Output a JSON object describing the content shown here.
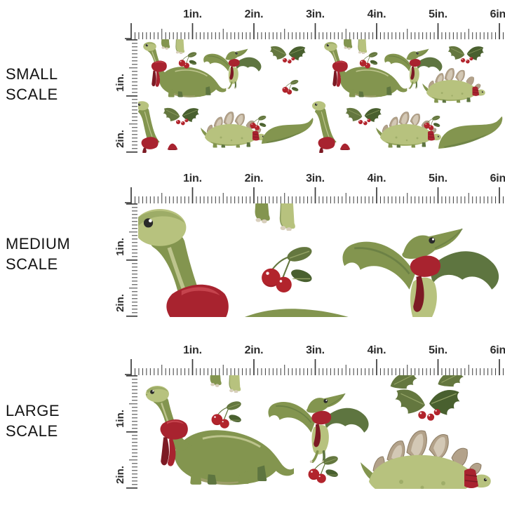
{
  "rows": [
    {
      "id": "small",
      "label_lines": [
        "SMALL",
        "SCALE"
      ]
    },
    {
      "id": "medium",
      "label_lines": [
        "MEDIUM",
        "SCALE"
      ]
    },
    {
      "id": "large",
      "label_lines": [
        "LARGE",
        "SCALE"
      ]
    }
  ],
  "rulers": {
    "horizontal_inch_labels": [
      "1in.",
      "2in.",
      "3in.",
      "4in.",
      "5in.",
      "6in."
    ],
    "vertical_inch_labels": [
      "1in.",
      "2in."
    ],
    "inches_horizontal": 6,
    "inches_vertical": 2,
    "tick_color": "#3b3b3b"
  },
  "pattern": {
    "motifs": [
      "brontosaurus-with-red-scarf",
      "pterodactyl-with-red-scarf",
      "stegosaurus-with-red-scarf",
      "holly-leaves",
      "red-berries",
      "dinosaur-feet"
    ],
    "background": "#ffffff",
    "colors": {
      "green_dark": "#5e7540",
      "green_mid": "#83954f",
      "green_light": "#b7c27e",
      "green_pale": "#d6d8a8",
      "khaki": "#a3a06e",
      "red": "#a8232f",
      "red_light": "#c5434d",
      "red_dark": "#7c1a24",
      "tan": "#b3a28a",
      "tan_light": "#d8cfbc",
      "tan_dark": "#8a7a62",
      "holly_green": "#64773f",
      "holly_dark": "#49602f",
      "berry_red": "#b2242c",
      "eye": "#2a2a2a"
    }
  }
}
